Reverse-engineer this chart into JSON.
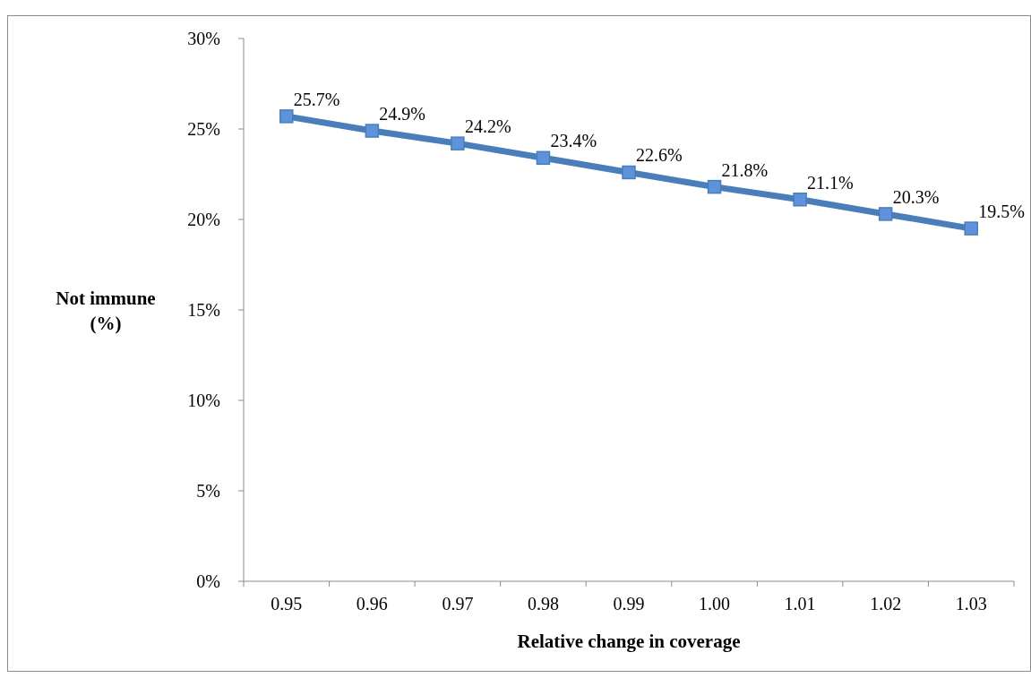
{
  "chart_data": {
    "type": "line",
    "xlabel": "Relative change in coverage",
    "ylabel": "Not immune (%)",
    "categories": [
      "0.95",
      "0.96",
      "0.97",
      "0.98",
      "0.99",
      "1.00",
      "1.01",
      "1.02",
      "1.03"
    ],
    "series": [
      {
        "color": "#4a7ebb",
        "values": [
          25.7,
          24.9,
          24.2,
          23.4,
          22.6,
          21.8,
          21.1,
          20.3,
          19.5
        ],
        "value_labels": [
          "25.7%",
          "24.9%",
          "24.2%",
          "23.4%",
          "22.6%",
          "21.8%",
          "21.1%",
          "20.3%",
          "19.5%"
        ]
      }
    ],
    "ylim": [
      0,
      30
    ],
    "yticks": [
      {
        "value": 0,
        "label": "0%"
      },
      {
        "value": 5,
        "label": "5%"
      },
      {
        "value": 10,
        "label": "10%"
      },
      {
        "value": 15,
        "label": "15%"
      },
      {
        "value": 20,
        "label": "20%"
      },
      {
        "value": 25,
        "label": "25%"
      },
      {
        "value": 30,
        "label": "30%"
      }
    ],
    "marker": "square",
    "line_style": "solid",
    "grid": false
  }
}
